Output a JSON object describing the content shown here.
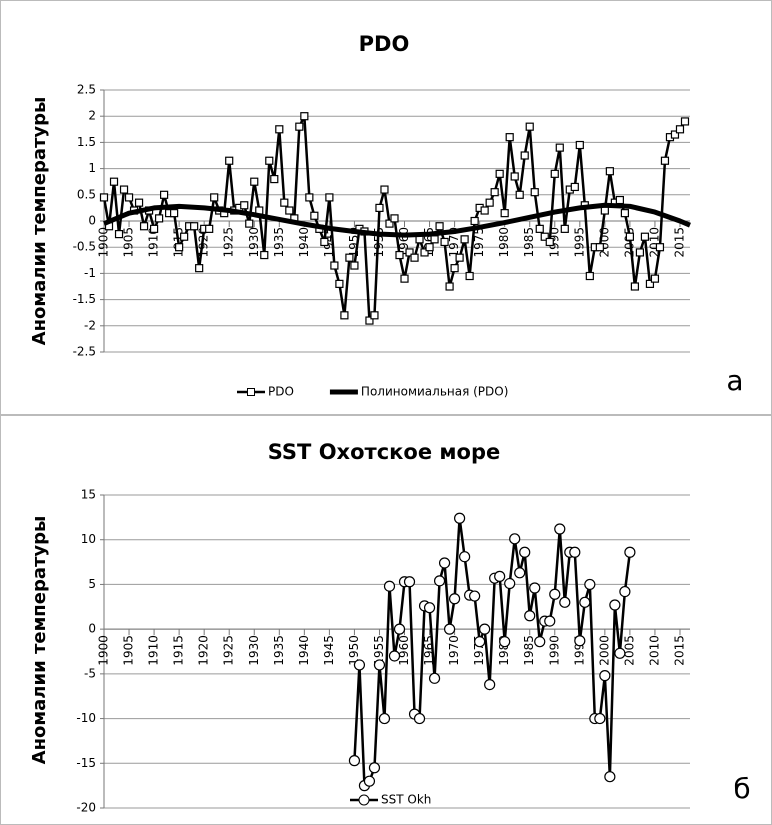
{
  "chart_data": [
    {
      "type": "line",
      "title": "PDO",
      "y_label": "Аномалии температуры",
      "panel_label": "а",
      "xlim": [
        1900,
        2017
      ],
      "xticks": [
        1900,
        1905,
        1910,
        1915,
        1920,
        1925,
        1930,
        1935,
        1940,
        1945,
        1950,
        1955,
        1960,
        1965,
        1970,
        1975,
        1980,
        1985,
        1990,
        1995,
        2000,
        2005,
        2010,
        2015
      ],
      "ylim": [
        -2.5,
        2.5
      ],
      "yticks": [
        2.5,
        2,
        1.5,
        1,
        0.5,
        0,
        -0.5,
        -1,
        -1.5,
        -2,
        -2.5
      ],
      "grid": true,
      "legend": "bottom",
      "series": [
        {
          "name": "PDO",
          "color": "#000000",
          "marker": "square",
          "line_width": 2.5,
          "x": [
            1900,
            1901,
            1902,
            1903,
            1904,
            1905,
            1906,
            1907,
            1908,
            1909,
            1910,
            1911,
            1912,
            1913,
            1914,
            1915,
            1916,
            1917,
            1918,
            1919,
            1920,
            1921,
            1922,
            1923,
            1924,
            1925,
            1926,
            1927,
            1928,
            1929,
            1930,
            1931,
            1932,
            1933,
            1934,
            1935,
            1936,
            1937,
            1938,
            1939,
            1940,
            1941,
            1942,
            1943,
            1944,
            1945,
            1946,
            1947,
            1948,
            1949,
            1950,
            1951,
            1952,
            1953,
            1954,
            1955,
            1956,
            1957,
            1958,
            1959,
            1960,
            1961,
            1962,
            1963,
            1964,
            1965,
            1966,
            1967,
            1968,
            1969,
            1970,
            1971,
            1972,
            1973,
            1974,
            1975,
            1976,
            1977,
            1978,
            1979,
            1980,
            1981,
            1982,
            1983,
            1984,
            1985,
            1986,
            1987,
            1988,
            1989,
            1990,
            1991,
            1992,
            1993,
            1994,
            1995,
            1996,
            1997,
            1998,
            1999,
            2000,
            2001,
            2002,
            2003,
            2004,
            2005,
            2006,
            2007,
            2008,
            2009,
            2010,
            2011,
            2012,
            2013,
            2014,
            2015,
            2016
          ],
          "values": [
            0.45,
            -0.1,
            0.75,
            -0.25,
            0.6,
            0.45,
            0.2,
            0.35,
            -0.1,
            0.2,
            -0.15,
            0.05,
            0.5,
            0.15,
            0.15,
            -0.5,
            -0.3,
            -0.1,
            -0.1,
            -0.9,
            -0.15,
            -0.15,
            0.45,
            0.2,
            0.15,
            1.15,
            0.2,
            0.25,
            0.3,
            -0.05,
            0.75,
            0.2,
            -0.65,
            1.15,
            0.8,
            1.75,
            0.35,
            0.2,
            0.05,
            1.8,
            2.0,
            0.45,
            0.1,
            -0.15,
            -0.4,
            0.45,
            -0.85,
            -1.2,
            -1.8,
            -0.7,
            -0.85,
            -0.15,
            -0.2,
            -1.9,
            -1.8,
            0.25,
            0.6,
            -0.05,
            0.05,
            -0.65,
            -1.1,
            -0.6,
            -0.7,
            -0.35,
            -0.6,
            -0.5,
            -0.35,
            -0.1,
            -0.4,
            -1.25,
            -0.9,
            -0.7,
            -0.35,
            -1.05,
            0.0,
            0.25,
            0.2,
            0.35,
            0.55,
            0.9,
            0.15,
            1.6,
            0.85,
            0.5,
            1.25,
            1.8,
            0.55,
            -0.15,
            -0.3,
            -0.4,
            0.9,
            1.4,
            -0.15,
            0.6,
            0.65,
            1.45,
            0.3,
            -1.05,
            -0.5,
            -0.5,
            0.2,
            0.95,
            0.35,
            0.4,
            0.15,
            -0.3,
            -1.25,
            -0.6,
            -0.3,
            -1.2,
            -1.1,
            -0.5,
            1.15,
            1.6,
            1.65,
            1.75,
            1.9
          ]
        },
        {
          "name": "Полиномиальная (PDO)",
          "color": "#000000",
          "line_width": 5,
          "x": [
            1900,
            1905,
            1910,
            1915,
            1920,
            1925,
            1930,
            1935,
            1940,
            1945,
            1950,
            1955,
            1960,
            1965,
            1970,
            1975,
            1980,
            1985,
            1990,
            1995,
            2000,
            2005,
            2010,
            2015,
            2017
          ],
          "values": [
            -0.05,
            0.15,
            0.25,
            0.28,
            0.25,
            0.2,
            0.12,
            0.03,
            -0.06,
            -0.14,
            -0.2,
            -0.25,
            -0.27,
            -0.25,
            -0.2,
            -0.12,
            -0.03,
            0.07,
            0.17,
            0.25,
            0.3,
            0.28,
            0.17,
            0.0,
            -0.08
          ]
        }
      ]
    },
    {
      "type": "line",
      "title": "SST Охотское море",
      "y_label": "Аномалии температуры",
      "panel_label": "б",
      "xlim": [
        1900,
        2017
      ],
      "xticks": [
        1900,
        1905,
        1910,
        1915,
        1920,
        1925,
        1930,
        1935,
        1940,
        1945,
        1950,
        1955,
        1960,
        1965,
        1970,
        1975,
        1980,
        1985,
        1990,
        1995,
        2000,
        2005,
        2010,
        2015
      ],
      "ylim": [
        -20,
        15
      ],
      "yticks": [
        15,
        10,
        5,
        0,
        -5,
        -10,
        -15,
        -20
      ],
      "grid": true,
      "legend": "bottom",
      "series": [
        {
          "name": "SST Okh",
          "color": "#000000",
          "marker": "circle",
          "line_width": 2.5,
          "x": [
            1950,
            1951,
            1952,
            1953,
            1954,
            1955,
            1956,
            1957,
            1958,
            1959,
            1960,
            1961,
            1962,
            1963,
            1964,
            1965,
            1966,
            1967,
            1968,
            1969,
            1970,
            1971,
            1972,
            1973,
            1974,
            1975,
            1976,
            1977,
            1978,
            1979,
            1980,
            1981,
            1982,
            1983,
            1984,
            1985,
            1986,
            1987,
            1988,
            1989,
            1990,
            1991,
            1992,
            1993,
            1994,
            1995,
            1996,
            1997,
            1998,
            1999,
            2000,
            2001,
            2002,
            2003,
            2004,
            2005
          ],
          "values": [
            -14.7,
            -4,
            -17.5,
            -17,
            -15.5,
            -4,
            -10,
            4.8,
            -3,
            0,
            5.3,
            5.3,
            -9.5,
            -10,
            2.6,
            2.4,
            -5.5,
            5.4,
            7.4,
            0,
            3.4,
            12.4,
            8.1,
            3.8,
            3.7,
            -1.4,
            0,
            -6.2,
            5.7,
            5.9,
            -1.4,
            5.1,
            10.1,
            6.3,
            8.6,
            1.5,
            4.6,
            -1.4,
            0.9,
            0.9,
            3.9,
            11.2,
            3,
            8.6,
            8.6,
            -1.3,
            3,
            5,
            -10,
            -10,
            -5.2,
            -16.5,
            2.7,
            -2.7,
            4.2,
            8.6
          ]
        }
      ]
    }
  ]
}
